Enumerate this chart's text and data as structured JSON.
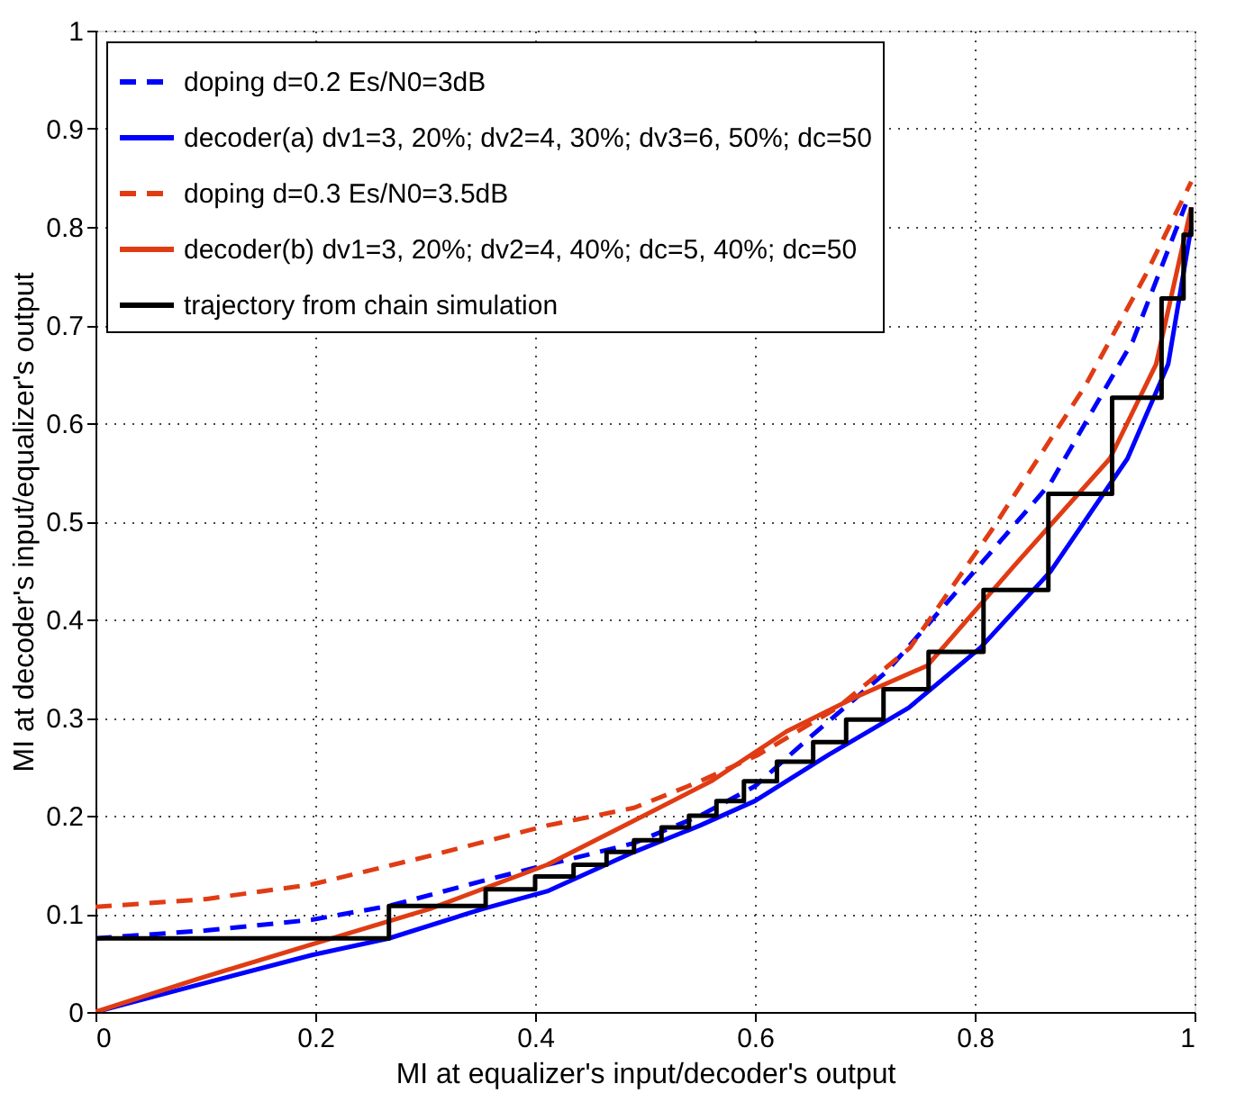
{
  "chart_data": {
    "type": "line",
    "xlabel": "MI at equalizer's input/decoder's output",
    "ylabel": "MI at decoder's input/equalizer's output",
    "xlim": [
      0,
      1
    ],
    "xticks": [
      0,
      0.2,
      0.4,
      0.6,
      0.8,
      1
    ],
    "ylim": [
      0,
      1
    ],
    "yticks": [
      0,
      0.1,
      0.2,
      0.3,
      0.4,
      0.5,
      0.6,
      0.7,
      0.8,
      0.9,
      1
    ],
    "grid": true,
    "legend": "top left",
    "marker": "none",
    "series": [
      {
        "name": "doping d=0.2 Es/N0=3dB",
        "color": "#0000ff",
        "line_style": "dashed",
        "x": [
          0,
          0.1,
          0.197,
          0.267,
          0.357,
          0.411,
          0.49,
          0.55,
          0.6,
          0.645,
          0.72,
          0.795,
          0.869,
          0.944,
          0.992
        ],
        "values": [
          0.075,
          0.083,
          0.094,
          0.108,
          0.135,
          0.15,
          0.172,
          0.2,
          0.23,
          0.275,
          0.347,
          0.443,
          0.539,
          0.684,
          0.823
        ]
      },
      {
        "name": "decoder(a) dv1=3, 20%; dv2=4, 30%; dv3=6, 50%; dc=50",
        "color": "#0000ff",
        "line_style": "solid",
        "x": [
          0,
          0.091,
          0.197,
          0.267,
          0.352,
          0.411,
          0.49,
          0.55,
          0.6,
          0.667,
          0.74,
          0.805,
          0.869,
          0.939,
          0.976,
          0.997
        ],
        "values": [
          0,
          0.027,
          0.058,
          0.075,
          0.105,
          0.123,
          0.163,
          0.19,
          0.215,
          0.262,
          0.31,
          0.371,
          0.449,
          0.564,
          0.66,
          0.8
        ]
      },
      {
        "name": "doping d=0.3 Es/N0=3.5dB",
        "color": "#e03c14",
        "line_style": "dashed",
        "x": [
          0,
          0.1,
          0.197,
          0.304,
          0.411,
          0.49,
          0.55,
          0.603,
          0.675,
          0.741,
          0.816,
          0.9,
          0.955,
          0.997
        ],
        "values": [
          0.107,
          0.115,
          0.13,
          0.159,
          0.19,
          0.208,
          0.235,
          0.262,
          0.31,
          0.371,
          0.492,
          0.637,
          0.75,
          0.846
        ]
      },
      {
        "name": "decoder(b) dv1=3, 20%; dv2=4, 40%; dc=5, 40%; dc=50",
        "color": "#e03c14",
        "line_style": "solid",
        "x": [
          0,
          0.091,
          0.197,
          0.304,
          0.411,
          0.49,
          0.56,
          0.629,
          0.69,
          0.757,
          0.837,
          0.923,
          0.965,
          0.997
        ],
        "values": [
          0,
          0.033,
          0.069,
          0.105,
          0.15,
          0.195,
          0.235,
          0.286,
          0.32,
          0.353,
          0.456,
          0.564,
          0.66,
          0.82
        ]
      },
      {
        "name": "trajectory from chain simulation",
        "color": "#000000",
        "line_style": "solid",
        "x": [
          0,
          0.267,
          0.267,
          0.355,
          0.355,
          0.4,
          0.4,
          0.435,
          0.435,
          0.465,
          0.465,
          0.49,
          0.49,
          0.515,
          0.515,
          0.54,
          0.54,
          0.565,
          0.565,
          0.59,
          0.59,
          0.62,
          0.62,
          0.653,
          0.653,
          0.683,
          0.683,
          0.717,
          0.717,
          0.758,
          0.758,
          0.808,
          0.808,
          0.867,
          0.867,
          0.925,
          0.925,
          0.97,
          0.97,
          0.99,
          0.99,
          0.997,
          0.997
        ],
        "values": [
          0.075,
          0.075,
          0.108,
          0.108,
          0.125,
          0.125,
          0.138,
          0.138,
          0.15,
          0.15,
          0.163,
          0.163,
          0.175,
          0.175,
          0.188,
          0.188,
          0.2,
          0.2,
          0.215,
          0.215,
          0.235,
          0.235,
          0.255,
          0.255,
          0.275,
          0.275,
          0.298,
          0.298,
          0.329,
          0.329,
          0.367,
          0.367,
          0.43,
          0.43,
          0.528,
          0.528,
          0.626,
          0.626,
          0.727,
          0.727,
          0.792,
          0.792,
          0.82
        ]
      }
    ]
  }
}
